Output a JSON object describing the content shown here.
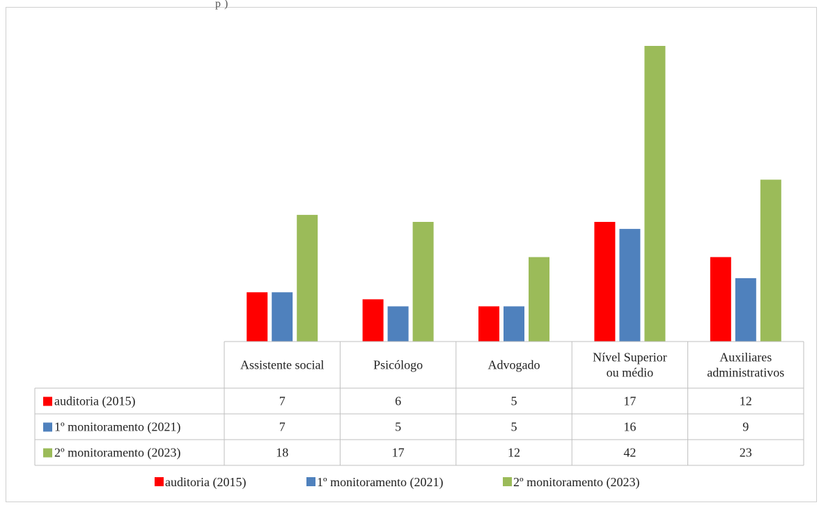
{
  "header_fragment": "p                                              )",
  "chart_data": {
    "type": "bar",
    "categories": [
      [
        "Assistente social"
      ],
      [
        "Psicólogo"
      ],
      [
        "Advogado"
      ],
      [
        "Nível Superior",
        "ou médio"
      ],
      [
        "Auxiliares",
        "administrativos"
      ]
    ],
    "series": [
      {
        "name": "auditoria (2015)",
        "color": "#ff0000",
        "values": [
          7,
          6,
          5,
          17,
          12
        ]
      },
      {
        "name": "1º monitoramento (2021)",
        "color": "#4f81bd",
        "values": [
          7,
          5,
          5,
          16,
          9
        ]
      },
      {
        "name": "2º monitoramento (2023)",
        "color": "#9bbb59",
        "values": [
          18,
          17,
          12,
          42,
          23
        ]
      }
    ],
    "ylim": [
      0,
      42
    ],
    "grid": false,
    "legend": "bottom",
    "data_table": true
  }
}
